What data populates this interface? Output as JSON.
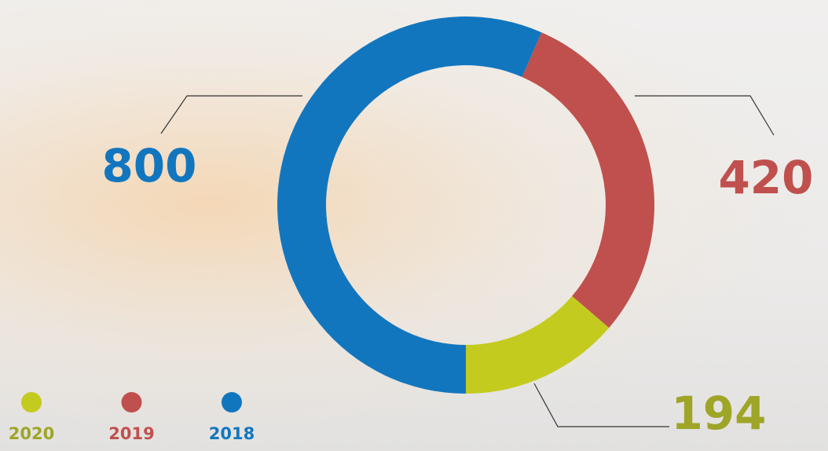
{
  "chart_data": {
    "type": "donut",
    "categories": [
      "2020",
      "2019",
      "2018"
    ],
    "values": [
      194,
      420,
      800
    ],
    "colors": [
      "#c3cb1f",
      "#c0504d",
      "#1276bf"
    ]
  }
}
